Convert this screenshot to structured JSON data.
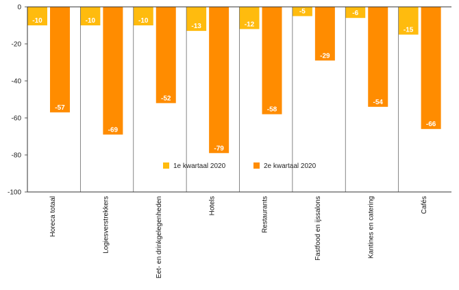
{
  "chart_data": {
    "type": "bar",
    "categories": [
      "Horeca totaal",
      "Logiesverstrekkers",
      "Eet- en drinkgelegenheden",
      "Hotels",
      "Restaurants",
      "Fastfood en ijssalons",
      "Kantines en catering",
      "Cafés"
    ],
    "series": [
      {
        "name": "1e kwartaal 2020",
        "color": "#FFBB0E",
        "values": [
          -10,
          -10,
          -10,
          -13,
          -12,
          -5,
          -6,
          -15
        ]
      },
      {
        "name": "2e kwartaal 2020",
        "color": "#FF8C00",
        "values": [
          -57,
          -69,
          -52,
          -79,
          -58,
          -29,
          -54,
          -66
        ]
      }
    ],
    "title": "",
    "xlabel": "",
    "ylabel": "",
    "ylim": [
      -100,
      0
    ],
    "yticks": [
      0,
      -20,
      -40,
      -60,
      -80,
      -100
    ],
    "grid": false,
    "legend": "center"
  }
}
